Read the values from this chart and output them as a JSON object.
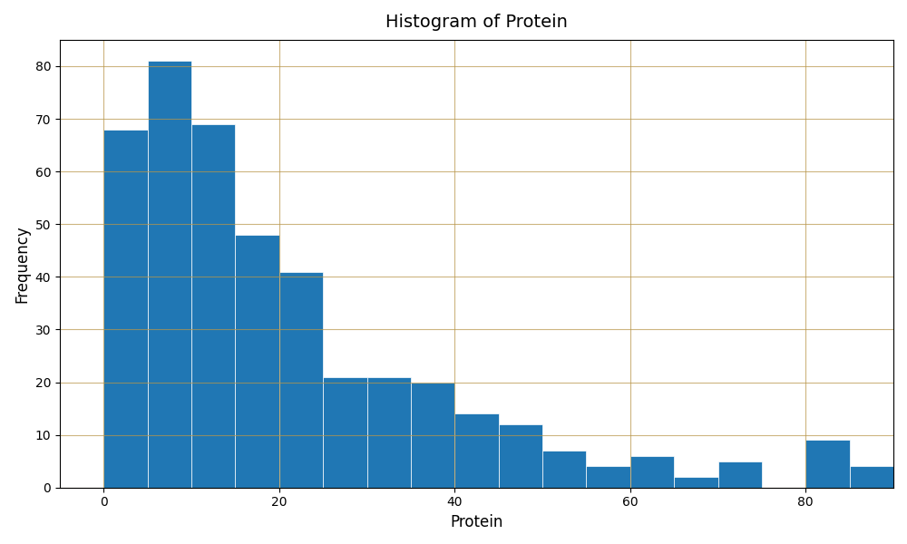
{
  "title": "Histogram of Protein",
  "xlabel": "Protein",
  "ylabel": "Frequency",
  "bar_color": "#2077b4",
  "bin_starts": [
    0,
    5,
    10,
    15,
    20,
    25,
    30,
    35,
    40,
    45,
    50,
    55,
    60,
    65,
    70,
    75,
    80,
    85
  ],
  "bar_heights": [
    68,
    81,
    69,
    48,
    41,
    21,
    21,
    20,
    14,
    12,
    7,
    4,
    6,
    2,
    5,
    0,
    9,
    4
  ],
  "bin_width": 5,
  "xlim": [
    -5,
    90
  ],
  "ylim": [
    0,
    85
  ],
  "yticks": [
    0,
    10,
    20,
    30,
    40,
    50,
    60,
    70,
    80
  ],
  "xticks": [
    0,
    20,
    40,
    60,
    80
  ],
  "figsize": [
    10,
    6
  ],
  "dpi": 100,
  "grid_color": "#b8964a",
  "grid_alpha": 0.7,
  "grid_linewidth": 0.8
}
